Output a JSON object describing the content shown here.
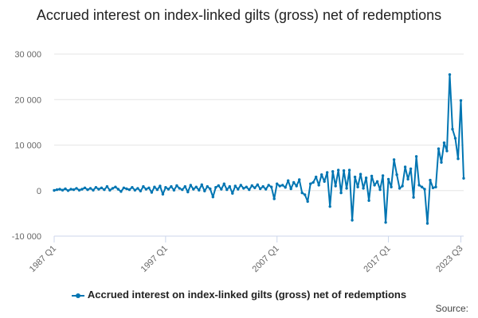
{
  "colors": {
    "series": "#0075b2",
    "grid": "#e6e6e6",
    "axis": "#ccd6eb",
    "text": "#666666"
  },
  "legend": {
    "label": "Accrued interest on index-linked gilts (gross) net of redemptions"
  },
  "source": {
    "label": "Source:"
  },
  "chart_data": {
    "type": "line",
    "title": "Accrued interest on index-linked gilts (gross) net of redemptions",
    "xlabel": "",
    "ylabel": "",
    "ylim": [
      -10000,
      30000
    ],
    "yticks": [
      {
        "value": 30000,
        "label": "30 000"
      },
      {
        "value": 20000,
        "label": "20 000"
      },
      {
        "value": 10000,
        "label": "10 000"
      },
      {
        "value": 0,
        "label": "0"
      },
      {
        "value": -10000,
        "label": "-10 000"
      }
    ],
    "xticks": [
      {
        "label": "1987 Q1"
      },
      {
        "label": "1997 Q1"
      },
      {
        "label": "2007 Q1"
      },
      {
        "label": "2017 Q1"
      },
      {
        "label": "2023 Q3"
      }
    ],
    "grid": true,
    "legend_position": "bottom",
    "start_period": "1987 Q1",
    "end_period": "2023 Q3",
    "series": [
      {
        "name": "Accrued interest on index-linked gilts (gross) net of redemptions",
        "values": [
          50,
          200,
          300,
          100,
          400,
          0,
          300,
          200,
          500,
          100,
          300,
          600,
          200,
          500,
          100,
          700,
          300,
          600,
          200,
          900,
          100,
          500,
          800,
          300,
          -200,
          600,
          400,
          200,
          700,
          100,
          500,
          -100,
          900,
          300,
          600,
          -400,
          800,
          200,
          1000,
          -800,
          700,
          300,
          900,
          100,
          1100,
          500,
          200,
          900,
          -300,
          1200,
          300,
          800,
          100,
          1300,
          -100,
          900,
          400,
          -1400,
          700,
          1100,
          300,
          1500,
          200,
          900,
          -600,
          1000,
          300,
          1200,
          500,
          800,
          200,
          1100,
          600,
          1300,
          400,
          900,
          300,
          1200,
          800,
          -1800,
          1500,
          1000,
          1200,
          700,
          2200,
          400,
          1800,
          1000,
          2400,
          -500,
          -900,
          -2400,
          1500,
          1800,
          3000,
          1200,
          3500,
          2000,
          4000,
          -3500,
          4200,
          1000,
          4500,
          -500,
          4400,
          500,
          4500,
          -6500,
          3000,
          800,
          3600,
          500,
          2800,
          -2200,
          3200,
          1200,
          2000,
          200,
          3300,
          -7000,
          2500,
          800,
          6800,
          3500,
          500,
          1000,
          5200,
          2500,
          4800,
          -1500,
          7500,
          1200,
          800,
          300,
          -7200,
          2300,
          600,
          800,
          9200,
          6200,
          10500,
          8700,
          25500,
          13500,
          11500,
          7000,
          19800,
          2700
        ]
      }
    ]
  }
}
